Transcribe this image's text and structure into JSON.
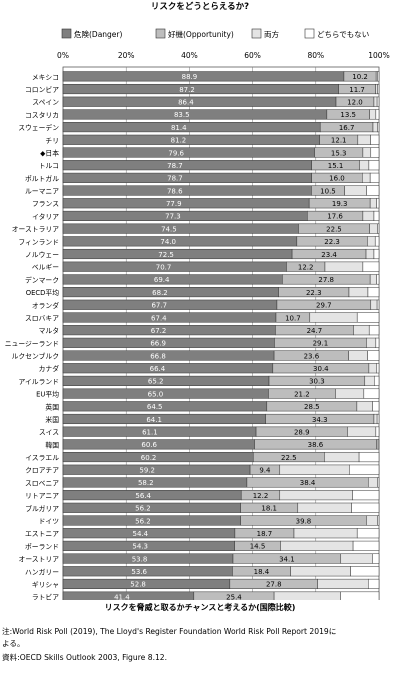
{
  "chart_data": {
    "type": "bar",
    "orientation": "horizontal",
    "stacked": true,
    "title": "リスクをどうとらえるか?",
    "xlim": [
      0,
      100
    ],
    "x_ticks": [
      "0%",
      "20%",
      "40%",
      "60%",
      "80%",
      "100%"
    ],
    "legend_position": "top",
    "series": [
      {
        "name": "危険(Danger)",
        "color": "#7f7f7f",
        "values": [
          88.9,
          87.2,
          86.4,
          83.5,
          81.4,
          81.2,
          79.6,
          78.7,
          78.7,
          78.6,
          77.9,
          77.3,
          74.5,
          74.0,
          72.5,
          70.7,
          69.4,
          68.2,
          67.7,
          67.4,
          67.2,
          66.9,
          66.8,
          66.4,
          65.2,
          65.0,
          64.5,
          64.1,
          61.1,
          60.6,
          60.2,
          59.2,
          58.2,
          56.4,
          56.2,
          56.2,
          54.4,
          54.3,
          53.8,
          53.6,
          52.8,
          41.4
        ]
      },
      {
        "name": "好機(Opportunity)",
        "color": "#bdbdbd",
        "values": [
          10.2,
          11.7,
          12.0,
          13.5,
          16.7,
          12.1,
          15.3,
          15.1,
          16.0,
          10.5,
          19.3,
          17.6,
          22.5,
          22.3,
          23.4,
          12.2,
          27.8,
          22.3,
          29.7,
          10.7,
          24.7,
          29.1,
          23.6,
          30.4,
          30.3,
          21.2,
          28.5,
          34.3,
          28.9,
          38.6,
          22.5,
          9.4,
          38.4,
          12.2,
          18.1,
          39.8,
          18.7,
          14.5,
          34.1,
          18.4,
          27.8,
          25.4
        ]
      },
      {
        "name": "両方",
        "color": "#e4e4e4",
        "values": [
          0.5,
          0.6,
          1.0,
          2.0,
          1.5,
          4.0,
          2.5,
          3.0,
          2.5,
          7.0,
          2.0,
          3.5,
          2.5,
          2.5,
          2.5,
          12.0,
          2.0,
          6.0,
          2.0,
          15.0,
          5.0,
          3.0,
          6.0,
          2.5,
          3.0,
          9.0,
          5.0,
          1.0,
          9.0,
          0.5,
          11.0,
          22.0,
          3.0,
          23.0,
          17.0,
          3.5,
          20.0,
          23.0,
          10.0,
          19.0,
          16.0,
          21.0
        ]
      },
      {
        "name": "どちらでもない",
        "color": "#ffffff",
        "values": [
          0.4,
          0.5,
          0.6,
          1.0,
          0.4,
          2.7,
          2.6,
          3.2,
          2.8,
          3.9,
          0.8,
          1.6,
          0.5,
          1.2,
          1.6,
          5.1,
          0.8,
          3.5,
          0.6,
          6.9,
          3.1,
          1.0,
          3.6,
          0.7,
          1.5,
          4.8,
          2.0,
          0.6,
          1.0,
          0.3,
          6.3,
          9.4,
          0.4,
          8.4,
          8.7,
          0.5,
          6.9,
          8.2,
          2.1,
          9.0,
          3.4,
          12.2
        ]
      }
    ],
    "categories": [
      "メキシコ",
      "コロンビア",
      "スペイン",
      "コスタリカ",
      "スウェーデン",
      "チリ",
      "◆日本",
      "トルコ",
      "ポルトガル",
      "ルーマニア",
      "フランス",
      "イタリア",
      "オーストラリア",
      "フィンランド",
      "ノルウェー",
      "ベルギー",
      "デンマーク",
      "OECD平均",
      "オランダ",
      "スロバキア",
      "マルタ",
      "ニュージーランド",
      "ルクセンブルク",
      "カナダ",
      "アイルランド",
      "EU平均",
      "英国",
      "米国",
      "スイス",
      "韓国",
      "イスラエル",
      "クロアチア",
      "スロベニア",
      "リトアニア",
      "ブルガリア",
      "ドイツ",
      "エストニア",
      "ポーランド",
      "オーストリア",
      "ハンガリー",
      "ギリシャ",
      "ラトビア"
    ],
    "label_series": [
      "危険(Danger)",
      "好機(Opportunity)"
    ],
    "grid": true
  },
  "caption": {
    "heading": "リスクを脅威と取るかチャンスと考えるか(国際比較)",
    "note_line1": "注:World Risk Poll (2019), The Lloyd's Register Foundation World Risk Poll Report 2019に",
    "note_line2": "よる。",
    "source": "資料:OECD Skills Outlook 2003, Figure 8.12."
  }
}
